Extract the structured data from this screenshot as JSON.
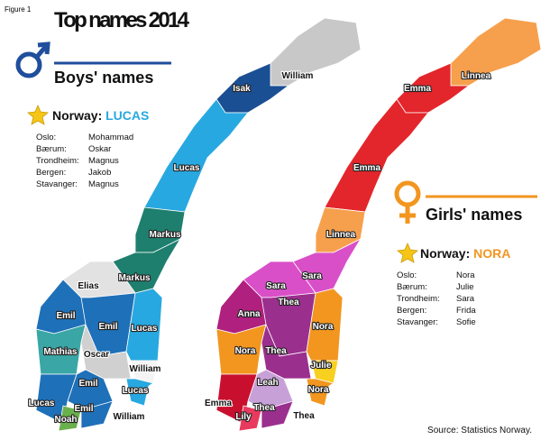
{
  "header": {
    "figure": "Figure 1",
    "title": "Top names 2014"
  },
  "boys": {
    "legend": "Boys' names",
    "norway_label": "Norway:",
    "top_name": "LUCAS",
    "cities": [
      {
        "city": "Oslo:",
        "name": "Mohammad"
      },
      {
        "city": "Bærum:",
        "name": "Oskar"
      },
      {
        "city": "Trondheim:",
        "name": "Magnus"
      },
      {
        "city": "Bergen:",
        "name": "Jakob"
      },
      {
        "city": "Stavanger:",
        "name": "Magnus"
      }
    ],
    "map_labels": [
      "William",
      "Isak",
      "Lucas",
      "Markus",
      "Markus",
      "Elias",
      "Emil",
      "Emil",
      "Lucas",
      "Mathias",
      "Oscar",
      "William",
      "Emil",
      "Lucas",
      "Noah",
      "Emil",
      "Lucas",
      "William"
    ]
  },
  "girls": {
    "legend": "Girls' names",
    "norway_label": "Norway:",
    "top_name": "NORA",
    "cities": [
      {
        "city": "Oslo:",
        "name": "Nora"
      },
      {
        "city": "Bærum:",
        "name": "Julie"
      },
      {
        "city": "Trondheim:",
        "name": "Sara"
      },
      {
        "city": "Bergen:",
        "name": "Frida"
      },
      {
        "city": "Stavanger:",
        "name": "Sofie"
      }
    ],
    "map_labels": [
      "Linnea",
      "Emma",
      "Emma",
      "Linnea",
      "Sara",
      "Sara",
      "Anna",
      "Thea",
      "Nora",
      "Nora",
      "Thea",
      "Julie",
      "Leah",
      "Emma",
      "Lily",
      "Thea",
      "Nora",
      "Thea"
    ]
  },
  "source": "Source: Statistics Norway."
}
